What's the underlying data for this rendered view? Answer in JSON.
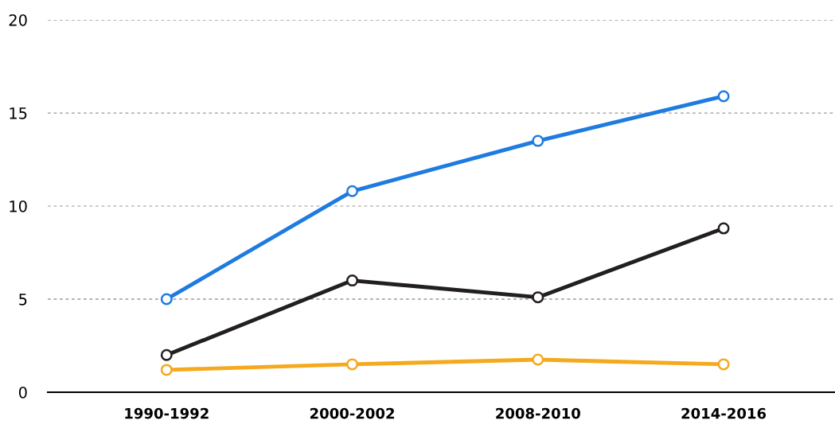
{
  "chart_data": {
    "type": "line",
    "categories": [
      "1990-1992",
      "2000-2002",
      "2008-2010",
      "2014-2016"
    ],
    "series": [
      {
        "color": "#1f7be0",
        "values": [
          5.0,
          10.8,
          13.5,
          15.9
        ]
      },
      {
        "color": "#231f20",
        "values": [
          2.0,
          6.0,
          5.1,
          8.8
        ]
      },
      {
        "color": "#f5a91c",
        "values": [
          1.2,
          1.5,
          1.75,
          1.5
        ]
      }
    ],
    "ylim": [
      0,
      20
    ],
    "yticks": [
      0,
      5,
      10,
      15,
      20
    ],
    "grid": "y",
    "marker": "circle",
    "line_style": "solid"
  }
}
